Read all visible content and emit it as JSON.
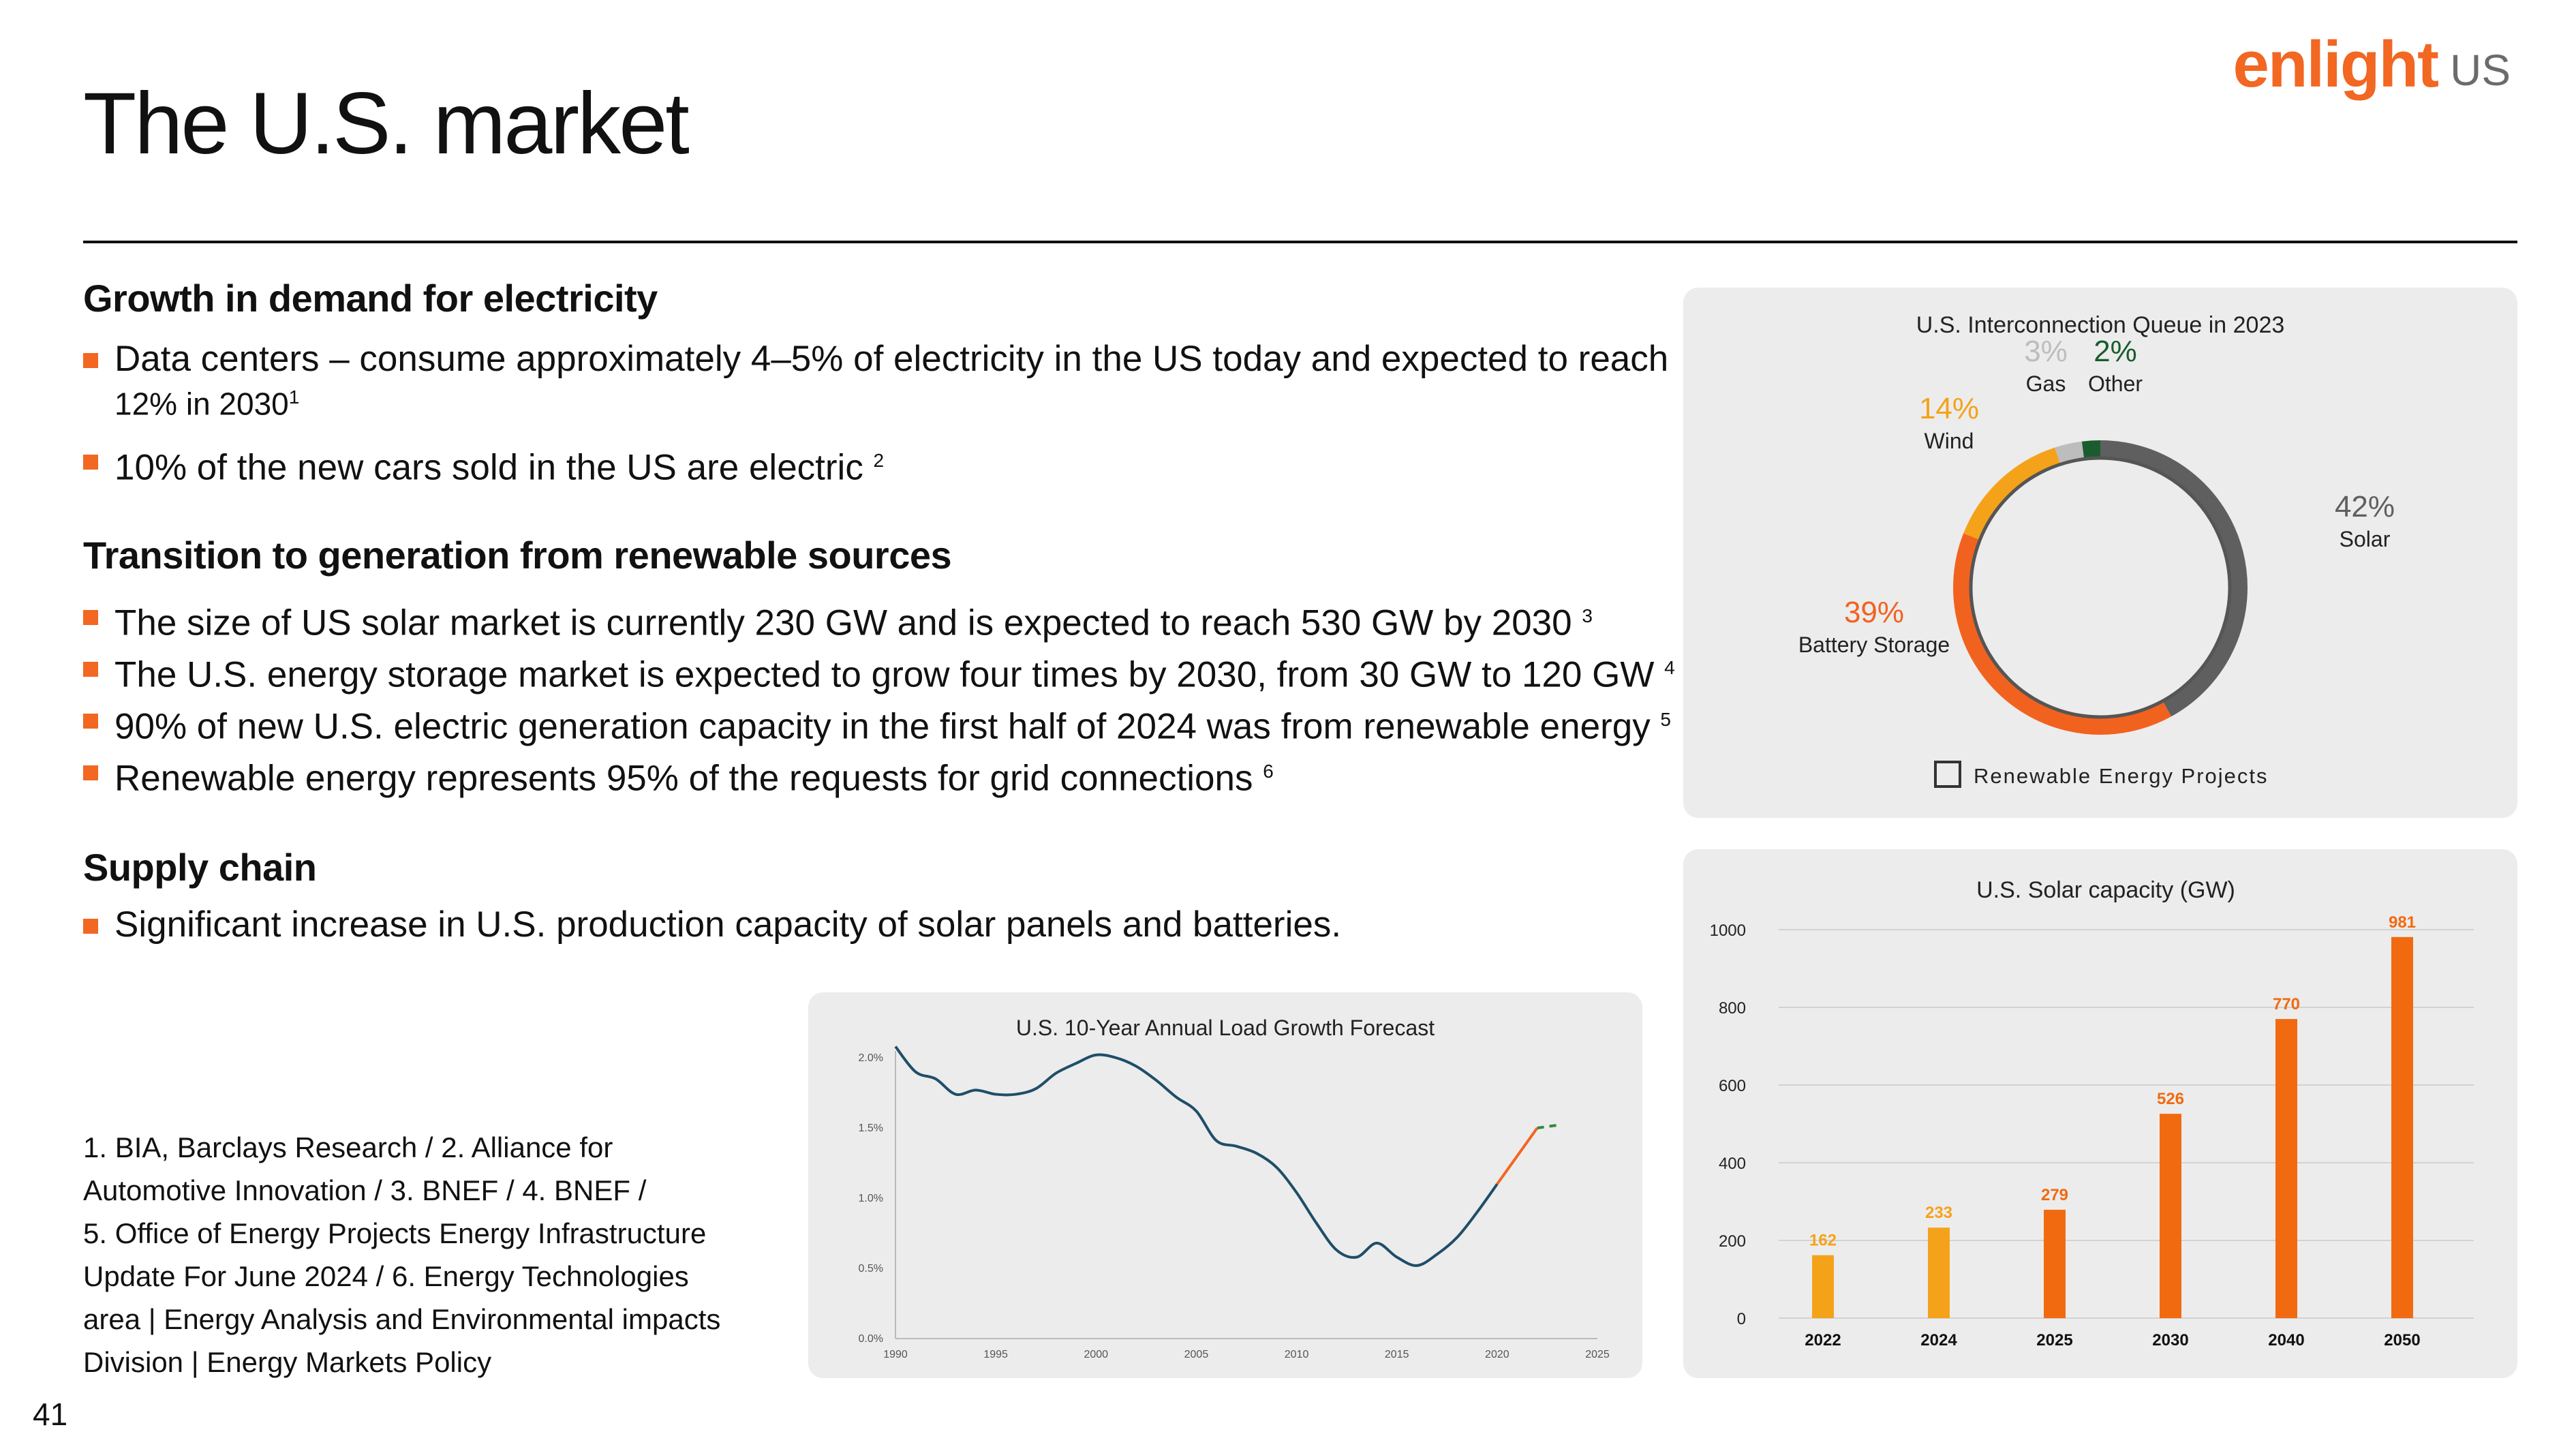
{
  "title": "The U.S. market",
  "logo": {
    "word": "enlight",
    "suffix": "US"
  },
  "page_number": "41",
  "sections": [
    {
      "heading": "Growth in demand for electricity",
      "bullets": [
        {
          "text": "Data centers – consume approximately 4–5% of electricity in the US today and expected to reach",
          "text2": "12% in 2030",
          "sup": "1"
        },
        {
          "text": "10% of the new cars sold in the US are electric ",
          "sup": "2"
        }
      ]
    },
    {
      "heading": "Transition to generation from renewable sources",
      "bullets": [
        {
          "text": "The size of US solar market is currently 230 GW and is expected to reach 530 GW by 2030 ",
          "sup": "3"
        },
        {
          "text": "The U.S. energy storage market is expected to grow four times by 2030, from 30 GW to 120 GW ",
          "sup": "4"
        },
        {
          "text": " 90% of new U.S. electric generation capacity in the first half of 2024 was from renewable energy ",
          "sup": "5"
        },
        {
          "text": "Renewable energy represents 95% of the requests for grid connections ",
          "sup": "6"
        }
      ]
    },
    {
      "heading": "Supply chain",
      "bullets": [
        {
          "text": "Significant increase in U.S. production capacity of solar panels and batteries."
        }
      ]
    }
  ],
  "footnote_lines": [
    "1. BIA, Barclays Research   /  2. Alliance for",
    "Automotive Innovation   /  3. BNEF   /  4. BNEF   /",
    "5. Office of Energy Projects Energy Infrastructure",
    "Update For June 2024   /  6. Energy Technologies",
    "area |  Energy Analysis and Environmental impacts",
    "Division  |  Energy Markets Policy"
  ],
  "colors": {
    "accent": "#f26722",
    "solar": "#5f5f5f",
    "battery": "#f2621f",
    "wind": "#f5a21b",
    "gas": "#bdbdbd",
    "other": "#1a5c2e",
    "bar_early": "#f5a21b",
    "bar_late": "#f26a10",
    "line": "#1f4e68"
  },
  "chart_data": [
    {
      "type": "pie",
      "title": "U.S. Interconnection Queue in 2023",
      "legend": "Renewable Energy Projects",
      "slices": [
        {
          "label": "Solar",
          "pct_label": "42%",
          "value": 42
        },
        {
          "label": "Battery Storage",
          "pct_label": "39%",
          "value": 39
        },
        {
          "label": "Wind",
          "pct_label": "14%",
          "value": 14
        },
        {
          "label": "Gas",
          "pct_label": "3%",
          "value": 3
        },
        {
          "label": "Other",
          "pct_label": "2%",
          "value": 2
        }
      ]
    },
    {
      "type": "bar",
      "title": "U.S. Solar capacity (GW)",
      "categories": [
        "2022",
        "2024",
        "2025",
        "2030",
        "2040",
        "2050"
      ],
      "values": [
        162,
        233,
        279,
        526,
        770,
        981
      ],
      "yticks": [
        "0",
        "200",
        "400",
        "600",
        "800",
        "1000"
      ],
      "ylim": [
        0,
        1000
      ]
    },
    {
      "type": "line",
      "title": "U.S. 10-Year Annual Load Growth Forecast",
      "xticks": [
        "1990",
        "1995",
        "2000",
        "2005",
        "2010",
        "2015",
        "2020",
        "2025"
      ],
      "yticks": [
        "0.0%",
        "0.5%",
        "1.0%",
        "1.5%",
        "2.0%"
      ],
      "xlim": [
        1990,
        2025
      ],
      "ylim": [
        0,
        2.0
      ],
      "x": [
        1990,
        1991,
        1992,
        1993,
        1994,
        1995,
        1996,
        1997,
        1998,
        1999,
        2000,
        2001,
        2002,
        2003,
        2004,
        2005,
        2006,
        2007,
        2008,
        2009,
        2010,
        2011,
        2012,
        2013,
        2014,
        2015,
        2016,
        2017,
        2018,
        2019,
        2020,
        2021,
        2022,
        2023
      ],
      "y": [
        2.08,
        1.9,
        1.85,
        1.74,
        1.77,
        1.74,
        1.74,
        1.78,
        1.89,
        1.96,
        2.02,
        2.0,
        1.94,
        1.84,
        1.72,
        1.62,
        1.41,
        1.37,
        1.32,
        1.22,
        1.04,
        0.82,
        0.63,
        0.58,
        0.68,
        0.58,
        0.52,
        0.6,
        0.72,
        0.9,
        1.1,
        1.3,
        1.5,
        1.52
      ],
      "series_split": {
        "solid_until": 2022,
        "orange_from": 2021,
        "dashed_from": 2022
      }
    }
  ]
}
